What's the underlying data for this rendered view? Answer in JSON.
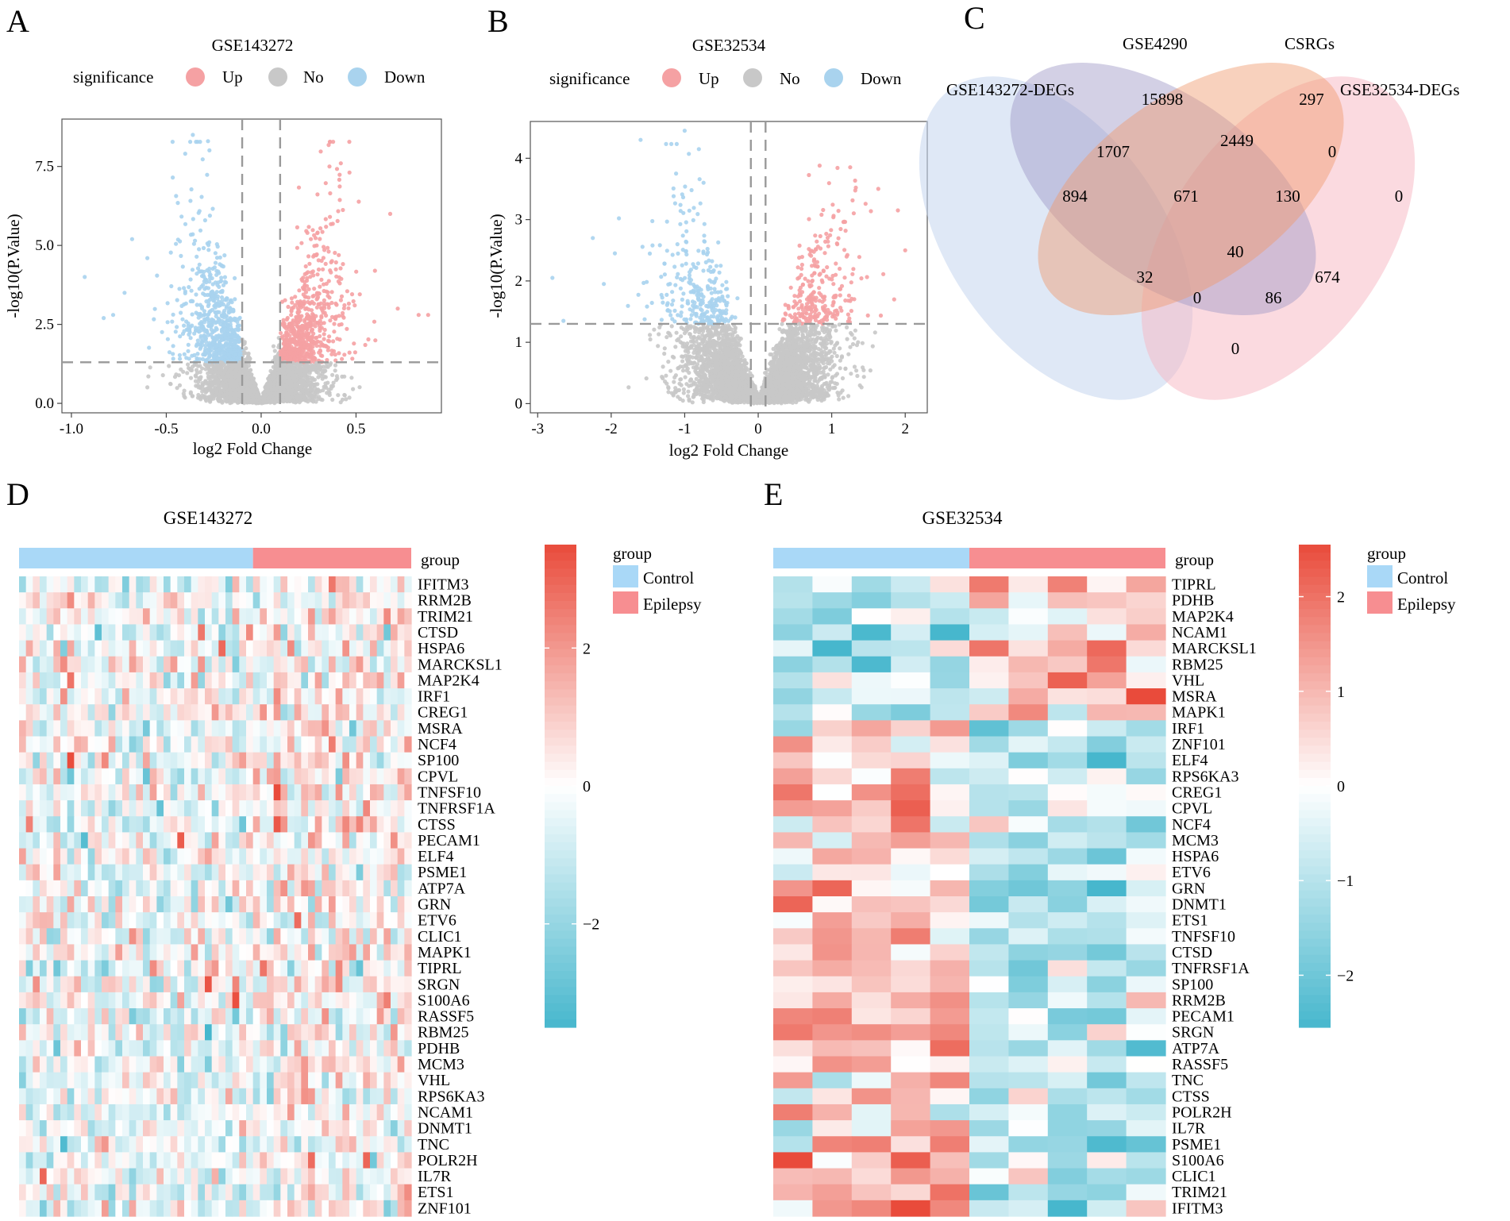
{
  "panel_letters": [
    "A",
    "B",
    "C",
    "D",
    "E"
  ],
  "legend_labels": {
    "significance": "significance",
    "up": "Up",
    "no": "No",
    "down": "Down"
  },
  "colors": {
    "up": "#f5a1a3",
    "no": "#c8c8c8",
    "down": "#a9d3ee",
    "heat_low": "#47b7cd",
    "heat_mid": "#ffffff",
    "heat_high": "#e94b3b",
    "control": "#a9d8f7",
    "epilepsy": "#f78e91"
  },
  "chart_data": [
    {
      "type": "scatter",
      "panel": "A",
      "title": "GSE143272",
      "xlabel": "log2 Fold Change",
      "ylabel": "-log10(P.Value)",
      "xlim": [
        -1.05,
        0.95
      ],
      "ylim": [
        -0.3,
        9.0
      ],
      "xticks": [
        -1.0,
        -0.5,
        0.0,
        0.5
      ],
      "xtick_labels": [
        "-1.0",
        "-0.5",
        "0.0",
        "0.5"
      ],
      "yticks": [
        0.0,
        2.5,
        5.0,
        7.5
      ],
      "ytick_labels": [
        "0.0",
        "2.5",
        "5.0",
        "7.5"
      ],
      "fc_cutoff": 0.1,
      "p_cutoff": 1.3,
      "groups": [
        "Up",
        "No",
        "Down"
      ],
      "point_count": 5200,
      "seed": 7,
      "outliers": [
        [
          -0.93,
          4.0
        ],
        [
          -0.72,
          3.5
        ],
        [
          -0.78,
          2.8
        ],
        [
          -0.83,
          2.7
        ],
        [
          0.68,
          6.0
        ],
        [
          0.72,
          3.0
        ],
        [
          0.88,
          2.8
        ],
        [
          0.83,
          2.8
        ],
        [
          0.6,
          4.2
        ],
        [
          -0.68,
          5.2
        ],
        [
          -0.6,
          4.6
        ],
        [
          0.42,
          7.6
        ],
        [
          0.36,
          7.5
        ],
        [
          -0.36,
          8.5
        ],
        [
          -0.28,
          8.3
        ]
      ]
    },
    {
      "type": "scatter",
      "panel": "B",
      "title": "GSE32534",
      "xlabel": "log2 Fold Change",
      "ylabel": "-log10(P.Value)",
      "xlim": [
        -3.1,
        2.3
      ],
      "ylim": [
        -0.15,
        4.6
      ],
      "xticks": [
        -3,
        -2,
        -1,
        0,
        1,
        2
      ],
      "xtick_labels": [
        "-3",
        "-2",
        "-1",
        "0",
        "1",
        "2"
      ],
      "yticks": [
        0,
        1,
        2,
        3,
        4
      ],
      "ytick_labels": [
        "0",
        "1",
        "2",
        "3",
        "4"
      ],
      "fc_cutoff": 0.1,
      "p_cutoff": 1.3,
      "groups": [
        "Up",
        "No",
        "Down"
      ],
      "point_count": 5200,
      "seed": 11,
      "outliers": [
        [
          -2.8,
          2.05
        ],
        [
          -2.65,
          1.35
        ],
        [
          -2.25,
          2.7
        ],
        [
          -1.6,
          4.3
        ],
        [
          -1.0,
          4.45
        ],
        [
          1.9,
          3.15
        ],
        [
          2.0,
          2.5
        ],
        [
          1.85,
          1.7
        ],
        [
          -2.1,
          1.95
        ],
        [
          -1.95,
          2.45
        ]
      ]
    },
    {
      "type": "venn",
      "panel": "C",
      "sets": [
        "GSE143272-DEGs",
        "GSE4290",
        "CSRGs",
        "GSE32534-DEGs"
      ],
      "regions": [
        {
          "label": "894",
          "sets": [
            "GSE143272-DEGs"
          ]
        },
        {
          "label": "15898",
          "sets": [
            "GSE4290"
          ]
        },
        {
          "label": "297",
          "sets": [
            "CSRGs"
          ]
        },
        {
          "label": "0",
          "sets": [
            "GSE32534-DEGs"
          ]
        },
        {
          "label": "1707",
          "sets": [
            "GSE143272-DEGs",
            "GSE4290"
          ]
        },
        {
          "label": "2449",
          "sets": [
            "GSE4290",
            "CSRGs"
          ]
        },
        {
          "label": "0",
          "sets": [
            "CSRGs",
            "GSE32534-DEGs"
          ]
        },
        {
          "label": "671",
          "sets": [
            "GSE143272-DEGs",
            "GSE4290",
            "CSRGs"
          ]
        },
        {
          "label": "130",
          "sets": [
            "GSE4290",
            "CSRGs",
            "GSE32534-DEGs"
          ]
        },
        {
          "label": "40",
          "sets": [
            "GSE143272-DEGs",
            "GSE4290",
            "CSRGs",
            "GSE32534-DEGs"
          ]
        },
        {
          "label": "32",
          "sets": [
            "GSE143272-DEGs",
            "CSRGs"
          ]
        },
        {
          "label": "0",
          "sets": [
            "GSE143272-DEGs",
            "CSRGs",
            "GSE32534-DEGs"
          ]
        },
        {
          "label": "86",
          "sets": [
            "GSE143272-DEGs",
            "GSE4290",
            "GSE32534-DEGs"
          ]
        },
        {
          "label": "674",
          "sets": [
            "GSE4290",
            "GSE32534-DEGs"
          ]
        },
        {
          "label": "0",
          "sets": [
            "GSE143272-DEGs",
            "GSE32534-DEGs"
          ]
        }
      ]
    },
    {
      "type": "heatmap",
      "panel": "D",
      "title": "GSE143272",
      "annotation_label": "group",
      "legend_title": "group",
      "groups": [
        {
          "name": "Control",
          "count": 34
        },
        {
          "name": "Epilepsy",
          "count": 23
        }
      ],
      "colorbar_ticks": [
        2,
        0,
        -2
      ],
      "colorbar_tick_labels": [
        "2",
        "0",
        "−2"
      ],
      "colorbar_range": [
        -3.5,
        3.5
      ],
      "seed": 3,
      "genes": [
        "IFITM3",
        "RRM2B",
        "TRIM21",
        "CTSD",
        "HSPA6",
        "MARCKSL1",
        "MAP2K4",
        "IRF1",
        "CREG1",
        "MSRA",
        "NCF4",
        "SP100",
        "CPVL",
        "TNFSF10",
        "TNFRSF1A",
        "CTSS",
        "PECAM1",
        "ELF4",
        "PSME1",
        "ATP7A",
        "GRN",
        "ETV6",
        "CLIC1",
        "MAPK1",
        "TIPRL",
        "SRGN",
        "S100A6",
        "RASSF5",
        "RBM25",
        "PDHB",
        "MCM3",
        "VHL",
        "RPS6KA3",
        "NCAM1",
        "DNMT1",
        "TNC",
        "POLR2H",
        "IL7R",
        "ETS1",
        "ZNF101"
      ]
    },
    {
      "type": "heatmap",
      "panel": "E",
      "title": "GSE32534",
      "annotation_label": "group",
      "legend_title": "group",
      "groups": [
        {
          "name": "Control",
          "count": 5
        },
        {
          "name": "Epilepsy",
          "count": 5
        }
      ],
      "colorbar_ticks": [
        2,
        1,
        0,
        -1,
        -2
      ],
      "colorbar_tick_labels": [
        "2",
        "1",
        "0",
        "−1",
        "−2"
      ],
      "colorbar_range": [
        -2.55,
        2.55
      ],
      "seed": 5,
      "genes": [
        "TIPRL",
        "PDHB",
        "MAP2K4",
        "NCAM1",
        "MARCKSL1",
        "RBM25",
        "VHL",
        "MSRA",
        "MAPK1",
        "IRF1",
        "ZNF101",
        "ELF4",
        "RPS6KA3",
        "CREG1",
        "CPVL",
        "NCF4",
        "MCM3",
        "HSPA6",
        "ETV6",
        "GRN",
        "DNMT1",
        "ETS1",
        "TNFSF10",
        "CTSD",
        "TNFRSF1A",
        "SP100",
        "RRM2B",
        "PECAM1",
        "SRGN",
        "ATP7A",
        "RASSF5",
        "TNC",
        "CTSS",
        "POLR2H",
        "IL7R",
        "PSME1",
        "S100A6",
        "CLIC1",
        "TRIM21",
        "IFITM3"
      ]
    }
  ]
}
